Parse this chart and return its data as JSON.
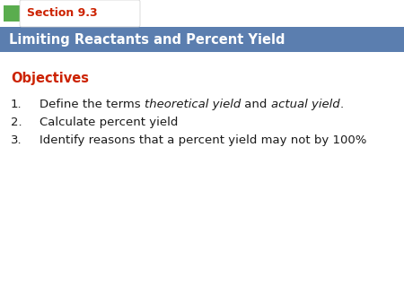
{
  "section_label": "Section 9.3",
  "title": "Limiting Reactants and Percent Yield",
  "objectives_label": "Objectives",
  "items": [
    {
      "number": "1. ",
      "parts": [
        {
          "text": "Define the terms ",
          "italic": false
        },
        {
          "text": "theoretical yield",
          "italic": true
        },
        {
          "text": " and ",
          "italic": false
        },
        {
          "text": "actual yield",
          "italic": true
        },
        {
          "text": ".",
          "italic": false
        }
      ]
    },
    {
      "number": "2. ",
      "parts": [
        {
          "text": "Calculate percent yield",
          "italic": false
        }
      ]
    },
    {
      "number": "3. ",
      "parts": [
        {
          "text": "Identify reasons that a percent yield may not by 100%",
          "italic": false
        }
      ]
    }
  ],
  "bg_color": "#ffffff",
  "header_bg_color": "#5b7eaf",
  "green_square_color": "#5aad4e",
  "section_tab_bg": "#f0f0f0",
  "section_text_color": "#cc2200",
  "header_text_color": "#ffffff",
  "objectives_color": "#cc2200",
  "body_text_color": "#1a1a1a",
  "fig_width": 4.5,
  "fig_height": 3.38,
  "dpi": 100
}
